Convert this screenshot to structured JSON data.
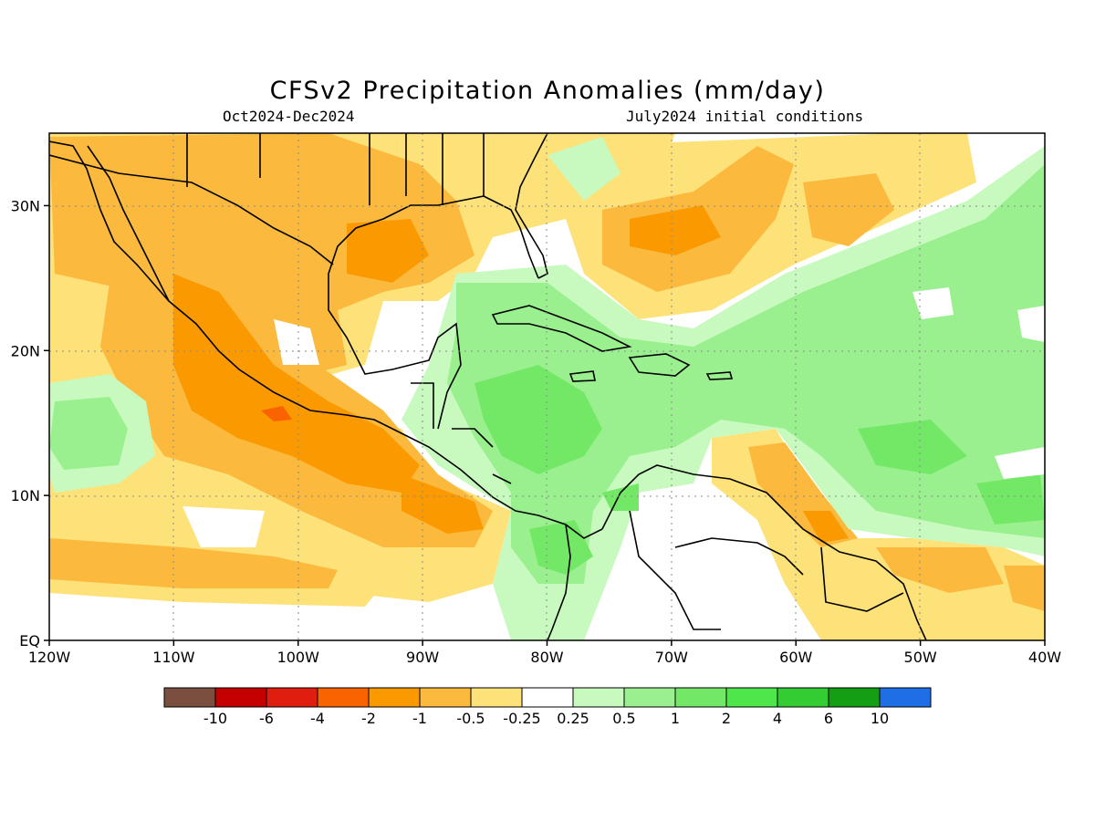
{
  "title": "CFSv2 Precipitation Anomalies (mm/day)",
  "subtitle_left": "Oct2024-Dec2024",
  "subtitle_right": "July2024 initial conditions",
  "lon_axis": {
    "ticks": [
      -120,
      -110,
      -100,
      -90,
      -80,
      -70,
      -60,
      -50,
      -40
    ],
    "labels": [
      "120W",
      "110W",
      "100W",
      "90W",
      "80W",
      "70W",
      "60W",
      "50W",
      "40W"
    ]
  },
  "lat_axis": {
    "ticks": [
      0,
      10,
      20,
      30
    ],
    "labels": [
      "EQ",
      "10N",
      "20N",
      "30N"
    ]
  },
  "colorbar": {
    "colors": [
      "#7a4f3f",
      "#c40000",
      "#e01e10",
      "#fa6400",
      "#fa9a00",
      "#fbb93d",
      "#fde27a",
      "#ffffff",
      "#c8fac0",
      "#9af08f",
      "#73e867",
      "#4ee64a",
      "#33cc33",
      "#149e14",
      "#1e6ee6"
    ],
    "labels": [
      "-10",
      "-6",
      "-4",
      "-2",
      "-1",
      "-0.5",
      "-0.25",
      "0.25",
      "0.5",
      "1",
      "2",
      "4",
      "6",
      "10"
    ]
  },
  "colors": {
    "dry_strong": "#fa6400",
    "dry": "#fa9a00",
    "dry_moderate": "#fbb93d",
    "dry_light": "#fde27a",
    "wet_light": "#c8fac0",
    "wet": "#9af08f",
    "wet_moderate": "#73e867"
  }
}
